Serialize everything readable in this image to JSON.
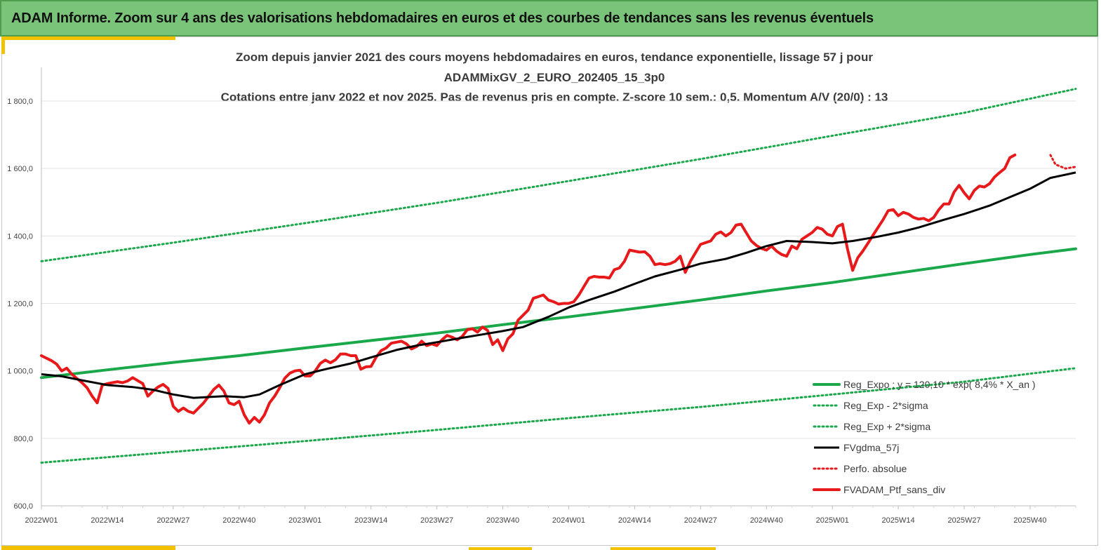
{
  "header": {
    "title": "ADAM Informe. Zoom sur 4 ans des valorisations hebdomadaires en euros et des courbes de tendances sans les revenus éventuels"
  },
  "colors": {
    "header_bg": "#7ac47a",
    "regression": "#1aa84a",
    "sigma": "#1aa84a",
    "moving_average": "#000000",
    "portfolio": "#e8191b",
    "perfo": "#e8191b",
    "accent": "#f2c200"
  },
  "chart_data": {
    "type": "line",
    "title_lines": [
      "Zoom depuis janvier 2021 des cours moyens hebdomadaires  en euros, tendance exponentielle, lissage 57 j pour",
      "ADAMMixGV_2_EURO_202405_15_3p0",
      "Cotations  entre janv 2022 et nov 2025. Pas de revenus pris en compte. Z-score 10 sem.: 0,5. Momentum A/V (20/0) : 13"
    ],
    "x_range": [
      0,
      204
    ],
    "x_ticks": [
      {
        "i": 0,
        "label": "2022W01"
      },
      {
        "i": 13,
        "label": "2022W14"
      },
      {
        "i": 26,
        "label": "2022W27"
      },
      {
        "i": 39,
        "label": "2022W40"
      },
      {
        "i": 52,
        "label": "2023W01"
      },
      {
        "i": 65,
        "label": "2023W14"
      },
      {
        "i": 78,
        "label": "2023W27"
      },
      {
        "i": 91,
        "label": "2023W40"
      },
      {
        "i": 104,
        "label": "2024W01"
      },
      {
        "i": 117,
        "label": "2024W14"
      },
      {
        "i": 130,
        "label": "2024W27"
      },
      {
        "i": 143,
        "label": "2024W40"
      },
      {
        "i": 156,
        "label": "2025W01"
      },
      {
        "i": 169,
        "label": "2025W14"
      },
      {
        "i": 182,
        "label": "2025W27"
      },
      {
        "i": 195,
        "label": "2025W40"
      }
    ],
    "ylim": [
      600,
      1800
    ],
    "y_ticks": [
      "600,0",
      "800,0",
      "1 000,0",
      "1 200,0",
      "1 400,0",
      "1 600,0",
      "1 800,0"
    ],
    "y_tick_values": [
      600,
      800,
      1000,
      1200,
      1400,
      1600,
      1800
    ],
    "series": [
      {
        "name": "Reg_Expo ; y = 120,10 * exp( 8,4% *  X_an )",
        "style": "solid-thick",
        "color": "#1aa84a",
        "points": [
          [
            0,
            980
          ],
          [
            13,
            1003
          ],
          [
            26,
            1025
          ],
          [
            39,
            1045
          ],
          [
            52,
            1068
          ],
          [
            65,
            1090
          ],
          [
            78,
            1112
          ],
          [
            91,
            1137
          ],
          [
            104,
            1160
          ],
          [
            117,
            1185
          ],
          [
            130,
            1210
          ],
          [
            143,
            1237
          ],
          [
            156,
            1262
          ],
          [
            169,
            1290
          ],
          [
            182,
            1318
          ],
          [
            195,
            1345
          ],
          [
            204,
            1362
          ]
        ]
      },
      {
        "name": "Reg_Exp - 2*sigma",
        "style": "dotted",
        "color": "#1aa84a",
        "points": [
          [
            0,
            728
          ],
          [
            26,
            760
          ],
          [
            52,
            792
          ],
          [
            78,
            825
          ],
          [
            104,
            860
          ],
          [
            130,
            893
          ],
          [
            156,
            930
          ],
          [
            182,
            968
          ],
          [
            204,
            1008
          ]
        ]
      },
      {
        "name": "Reg_Exp + 2*sigma",
        "style": "dotted",
        "color": "#1aa84a",
        "points": [
          [
            0,
            1325
          ],
          [
            26,
            1380
          ],
          [
            52,
            1438
          ],
          [
            78,
            1498
          ],
          [
            104,
            1563
          ],
          [
            130,
            1628
          ],
          [
            156,
            1697
          ],
          [
            182,
            1765
          ],
          [
            204,
            1836
          ]
        ]
      },
      {
        "name": "FVgdma_57j",
        "style": "solid",
        "color": "#000000",
        "points": [
          [
            0,
            990
          ],
          [
            4,
            984
          ],
          [
            8,
            972
          ],
          [
            13,
            958
          ],
          [
            18,
            952
          ],
          [
            22,
            944
          ],
          [
            26,
            930
          ],
          [
            30,
            920
          ],
          [
            36,
            925
          ],
          [
            40,
            922
          ],
          [
            43,
            930
          ],
          [
            47,
            958
          ],
          [
            52,
            990
          ],
          [
            56,
            1005
          ],
          [
            61,
            1022
          ],
          [
            65,
            1040
          ],
          [
            70,
            1062
          ],
          [
            74,
            1075
          ],
          [
            78,
            1085
          ],
          [
            83,
            1098
          ],
          [
            87,
            1108
          ],
          [
            91,
            1118
          ],
          [
            95,
            1130
          ],
          [
            100,
            1160
          ],
          [
            104,
            1188
          ],
          [
            108,
            1210
          ],
          [
            113,
            1235
          ],
          [
            117,
            1258
          ],
          [
            121,
            1280
          ],
          [
            126,
            1300
          ],
          [
            130,
            1318
          ],
          [
            135,
            1332
          ],
          [
            139,
            1350
          ],
          [
            143,
            1370
          ],
          [
            147,
            1385
          ],
          [
            152,
            1382
          ],
          [
            156,
            1378
          ],
          [
            160,
            1385
          ],
          [
            165,
            1398
          ],
          [
            169,
            1410
          ],
          [
            173,
            1425
          ],
          [
            178,
            1448
          ],
          [
            182,
            1465
          ],
          [
            187,
            1490
          ],
          [
            191,
            1515
          ],
          [
            195,
            1540
          ],
          [
            199,
            1572
          ],
          [
            204,
            1588
          ]
        ]
      },
      {
        "name": "Perfo. absolue",
        "style": "dotted",
        "color": "#e8191b",
        "points": [
          [
            199,
            1640
          ],
          [
            200,
            1612
          ],
          [
            202,
            1600
          ],
          [
            204,
            1605
          ]
        ]
      },
      {
        "name": "FVADAM_Ptf_sans_div",
        "style": "solid-thick",
        "color": "#e8191b",
        "points": [
          [
            0,
            1045
          ],
          [
            2,
            1030
          ],
          [
            3,
            1020
          ],
          [
            4,
            1000
          ],
          [
            5,
            1008
          ],
          [
            6,
            990
          ],
          [
            8,
            965
          ],
          [
            9,
            950
          ],
          [
            10,
            925
          ],
          [
            11,
            905
          ],
          [
            12,
            958
          ],
          [
            13,
            962
          ],
          [
            15,
            968
          ],
          [
            16,
            965
          ],
          [
            17,
            970
          ],
          [
            18,
            980
          ],
          [
            20,
            962
          ],
          [
            21,
            925
          ],
          [
            22,
            940
          ],
          [
            23,
            952
          ],
          [
            24,
            960
          ],
          [
            25,
            948
          ],
          [
            26,
            895
          ],
          [
            27,
            880
          ],
          [
            28,
            890
          ],
          [
            29,
            880
          ],
          [
            30,
            875
          ],
          [
            32,
            905
          ],
          [
            33,
            925
          ],
          [
            34,
            945
          ],
          [
            35,
            958
          ],
          [
            36,
            940
          ],
          [
            37,
            905
          ],
          [
            38,
            900
          ],
          [
            39,
            910
          ],
          [
            40,
            870
          ],
          [
            41,
            845
          ],
          [
            42,
            862
          ],
          [
            43,
            848
          ],
          [
            44,
            870
          ],
          [
            45,
            905
          ],
          [
            46,
            925
          ],
          [
            47,
            950
          ],
          [
            48,
            978
          ],
          [
            49,
            993
          ],
          [
            50,
            1000
          ],
          [
            51,
            1002
          ],
          [
            52,
            985
          ],
          [
            53,
            985
          ],
          [
            54,
            1000
          ],
          [
            55,
            1022
          ],
          [
            56,
            1032
          ],
          [
            57,
            1024
          ],
          [
            58,
            1033
          ],
          [
            59,
            1050
          ],
          [
            60,
            1050
          ],
          [
            61,
            1045
          ],
          [
            62,
            1045
          ],
          [
            63,
            1005
          ],
          [
            64,
            1012
          ],
          [
            65,
            1013
          ],
          [
            66,
            1040
          ],
          [
            67,
            1060
          ],
          [
            68,
            1068
          ],
          [
            69,
            1082
          ],
          [
            70,
            1085
          ],
          [
            71,
            1088
          ],
          [
            72,
            1080
          ],
          [
            73,
            1065
          ],
          [
            74,
            1072
          ],
          [
            75,
            1088
          ],
          [
            76,
            1075
          ],
          [
            77,
            1080
          ],
          [
            78,
            1075
          ],
          [
            79,
            1092
          ],
          [
            80,
            1105
          ],
          [
            81,
            1100
          ],
          [
            82,
            1092
          ],
          [
            83,
            1102
          ],
          [
            84,
            1122
          ],
          [
            85,
            1125
          ],
          [
            86,
            1115
          ],
          [
            87,
            1130
          ],
          [
            88,
            1120
          ],
          [
            89,
            1078
          ],
          [
            90,
            1092
          ],
          [
            91,
            1060
          ],
          [
            92,
            1095
          ],
          [
            93,
            1110
          ],
          [
            94,
            1150
          ],
          [
            95,
            1165
          ],
          [
            96,
            1180
          ],
          [
            97,
            1215
          ],
          [
            98,
            1220
          ],
          [
            99,
            1225
          ],
          [
            100,
            1210
          ],
          [
            101,
            1205
          ],
          [
            102,
            1198
          ],
          [
            103,
            1200
          ],
          [
            104,
            1200
          ],
          [
            105,
            1205
          ],
          [
            106,
            1225
          ],
          [
            107,
            1250
          ],
          [
            108,
            1275
          ],
          [
            109,
            1280
          ],
          [
            110,
            1278
          ],
          [
            111,
            1278
          ],
          [
            112,
            1275
          ],
          [
            113,
            1300
          ],
          [
            114,
            1305
          ],
          [
            115,
            1325
          ],
          [
            116,
            1358
          ],
          [
            117,
            1355
          ],
          [
            118,
            1352
          ],
          [
            119,
            1353
          ],
          [
            120,
            1340
          ],
          [
            121,
            1315
          ],
          [
            122,
            1318
          ],
          [
            123,
            1315
          ],
          [
            124,
            1318
          ],
          [
            125,
            1325
          ],
          [
            126,
            1340
          ],
          [
            127,
            1292
          ],
          [
            128,
            1325
          ],
          [
            129,
            1350
          ],
          [
            130,
            1375
          ],
          [
            131,
            1380
          ],
          [
            132,
            1385
          ],
          [
            133,
            1405
          ],
          [
            134,
            1412
          ],
          [
            135,
            1400
          ],
          [
            136,
            1410
          ],
          [
            137,
            1432
          ],
          [
            138,
            1435
          ],
          [
            139,
            1410
          ],
          [
            140,
            1385
          ],
          [
            141,
            1372
          ],
          [
            142,
            1363
          ],
          [
            143,
            1358
          ],
          [
            144,
            1370
          ],
          [
            145,
            1355
          ],
          [
            146,
            1345
          ],
          [
            147,
            1340
          ],
          [
            148,
            1370
          ],
          [
            149,
            1362
          ],
          [
            150,
            1390
          ],
          [
            151,
            1400
          ],
          [
            152,
            1410
          ],
          [
            153,
            1425
          ],
          [
            154,
            1420
          ],
          [
            155,
            1405
          ],
          [
            156,
            1400
          ],
          [
            157,
            1428
          ],
          [
            158,
            1435
          ],
          [
            159,
            1360
          ],
          [
            160,
            1298
          ],
          [
            161,
            1335
          ],
          [
            162,
            1355
          ],
          [
            163,
            1378
          ],
          [
            164,
            1402
          ],
          [
            165,
            1425
          ],
          [
            166,
            1448
          ],
          [
            167,
            1475
          ],
          [
            168,
            1478
          ],
          [
            169,
            1460
          ],
          [
            170,
            1470
          ],
          [
            171,
            1465
          ],
          [
            172,
            1455
          ],
          [
            173,
            1450
          ],
          [
            174,
            1452
          ],
          [
            175,
            1445
          ],
          [
            176,
            1455
          ],
          [
            177,
            1478
          ],
          [
            178,
            1495
          ],
          [
            179,
            1495
          ],
          [
            180,
            1530
          ],
          [
            181,
            1550
          ],
          [
            182,
            1528
          ],
          [
            183,
            1510
          ],
          [
            184,
            1535
          ],
          [
            185,
            1548
          ],
          [
            186,
            1545
          ],
          [
            187,
            1555
          ],
          [
            188,
            1575
          ],
          [
            189,
            1588
          ],
          [
            190,
            1600
          ],
          [
            191,
            1632
          ],
          [
            192,
            1640
          ]
        ]
      }
    ],
    "legend_position": "bottom-right"
  }
}
